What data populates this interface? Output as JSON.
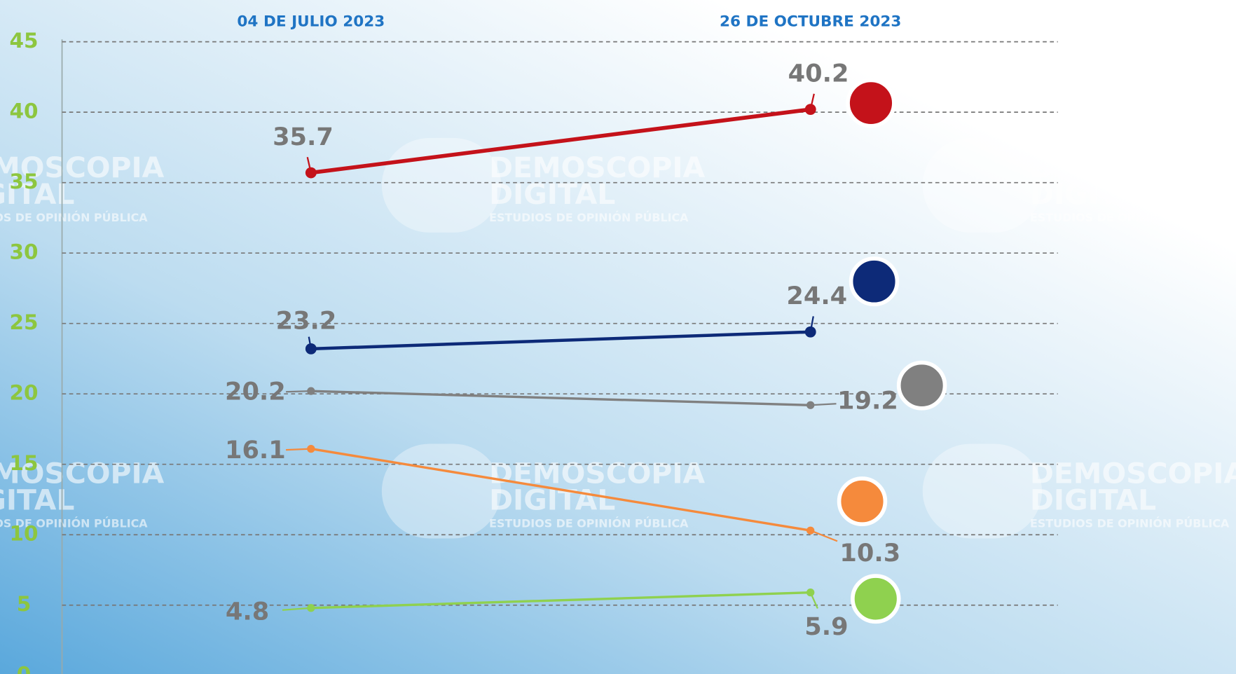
{
  "chart_data": {
    "type": "line",
    "categories": [
      "04 DE JULIO 2023",
      "26 DE OCTUBRE 2023"
    ],
    "series": [
      {
        "color": "#c4121a",
        "values": [
          35.7,
          40.2
        ]
      },
      {
        "color": "#0d2a78",
        "values": [
          23.2,
          24.4
        ]
      },
      {
        "color": "#808080",
        "values": [
          20.2,
          19.2
        ]
      },
      {
        "color": "#f58a3c",
        "values": [
          16.1,
          10.3
        ]
      },
      {
        "color": "#8fd14f",
        "values": [
          4.8,
          5.9
        ]
      }
    ],
    "ylim": [
      0,
      45
    ],
    "yticks": [
      0,
      5,
      10,
      15,
      20,
      25,
      30,
      35,
      40,
      45
    ],
    "grid": true,
    "watermark": [
      "DEMOSCOPIA",
      "DIGITAL",
      "ESTUDIOS DE OPINIÓN PÚBLICA"
    ]
  }
}
